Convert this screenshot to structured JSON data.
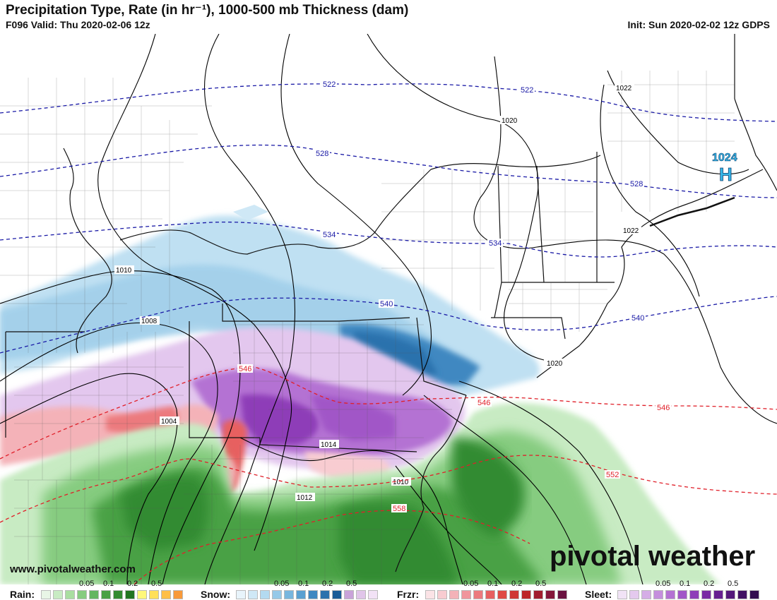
{
  "header": {
    "title": "Precipitation Type, Rate (in hr⁻¹), 1000-500 mb Thickness (dam)",
    "valid": "F096 Valid: Thu 2020-02-06 12z",
    "init": "Init: Sun 2020-02-02 12z GDPS"
  },
  "footer": {
    "website": "www.pivotalweather.com",
    "brand": "pivotal weather"
  },
  "pressure_centers": [
    {
      "label": "1024",
      "symbol": "H"
    }
  ],
  "isobar_labels": [
    "1022",
    "1020",
    "1022",
    "1010",
    "1008",
    "1004",
    "1014",
    "1010",
    "1012",
    "1020"
  ],
  "thickness_labels_blue": [
    "522",
    "522",
    "528",
    "528",
    "534",
    "534",
    "540",
    "540"
  ],
  "thickness_labels_red": [
    "546",
    "546",
    "546",
    "552",
    "558"
  ],
  "legend": {
    "rain": {
      "label": "Rain:",
      "ticks": [
        "0.05",
        "0.1",
        "0.2",
        "0.5"
      ],
      "colors": [
        "#e8f5e6",
        "#c8ebc3",
        "#a9dea1",
        "#86cc80",
        "#64b660",
        "#49a145",
        "#338b31",
        "#217521",
        "#fff87a",
        "#ffe059",
        "#ffbf47",
        "#f89a3a"
      ]
    },
    "snow": {
      "label": "Snow:",
      "ticks": [
        "0.05",
        "0.1",
        "0.2",
        "0.5"
      ],
      "colors": [
        "#e8f4fb",
        "#cfe8f6",
        "#b3daf0",
        "#95c9e8",
        "#78b6de",
        "#5aa0d1",
        "#3f88c1",
        "#2a72ad",
        "#195d98",
        "#c9a3d9",
        "#e0c5e9",
        "#f2e2f6"
      ]
    },
    "frzr": {
      "label": "Frzr:",
      "ticks": [
        "0.05",
        "0.1",
        "0.2",
        "0.5"
      ],
      "colors": [
        "#fbe3e6",
        "#f8ccd1",
        "#f4b2b8",
        "#f0959c",
        "#ec7a7e",
        "#e76060",
        "#df4a45",
        "#cf3734",
        "#bd2627",
        "#a11d2e",
        "#84163a",
        "#6a1240"
      ]
    },
    "sleet": {
      "label": "Sleet:",
      "ticks": [
        "0.05",
        "0.1",
        "0.2",
        "0.5"
      ],
      "colors": [
        "#f1e3f6",
        "#e4c9ee",
        "#d5ade6",
        "#c58fdd",
        "#b472d3",
        "#a156c7",
        "#8e3db8",
        "#7a2ba5",
        "#662090",
        "#53187a",
        "#421264",
        "#330d4f"
      ]
    }
  }
}
